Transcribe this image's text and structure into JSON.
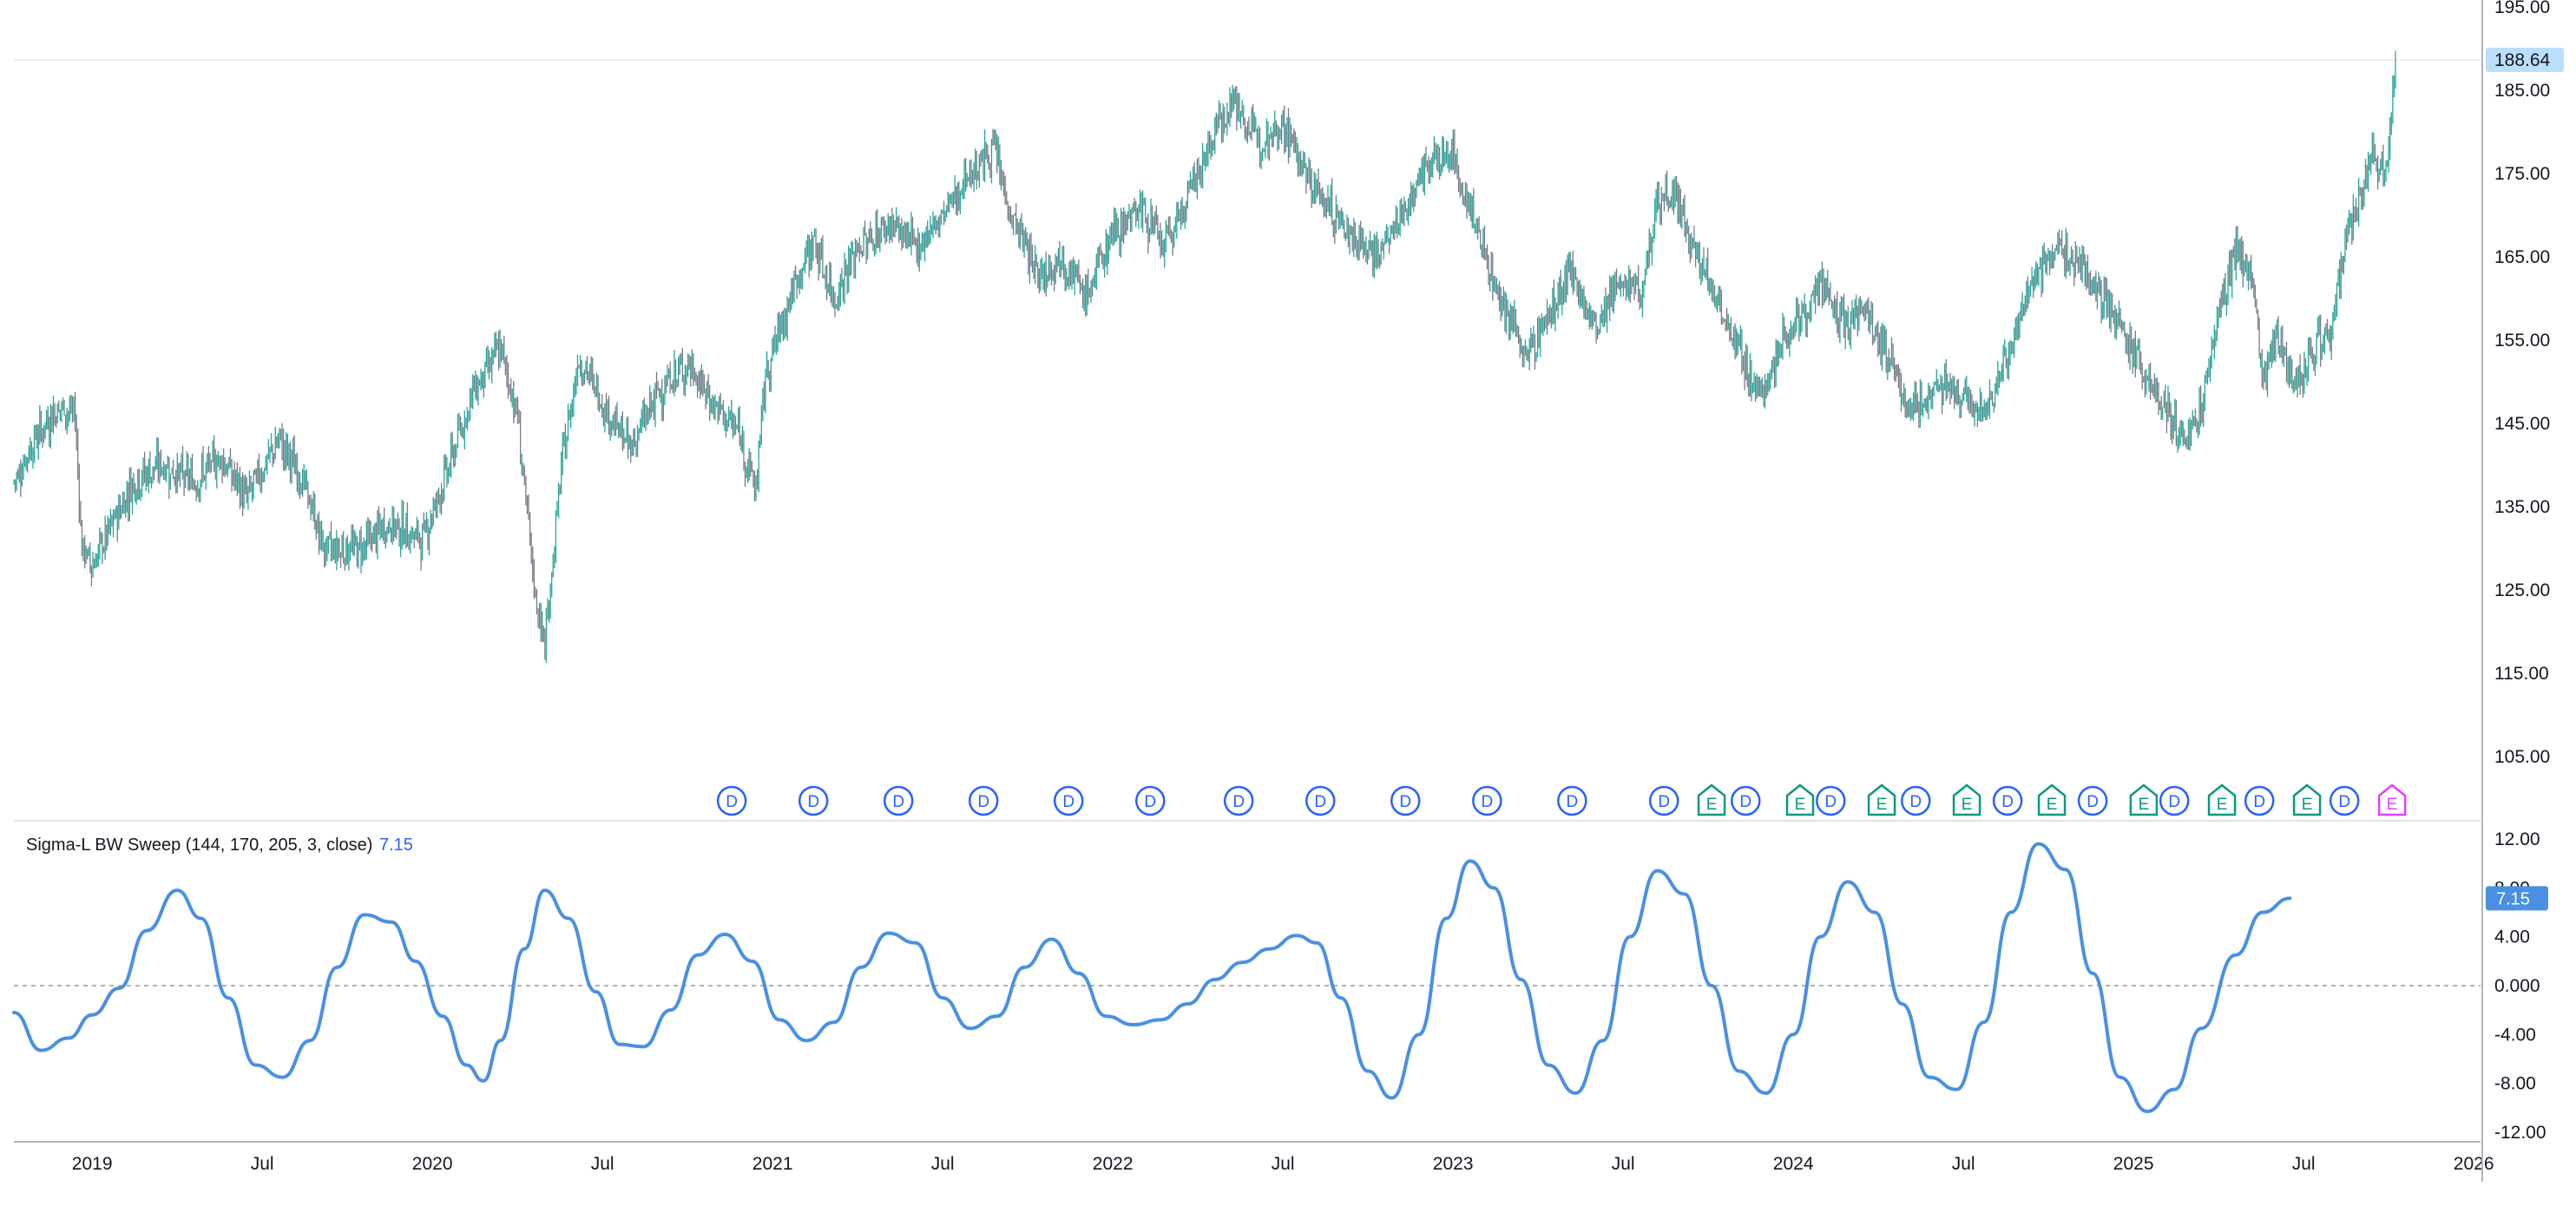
{
  "chart_data": [
    {
      "type": "candlestick",
      "series": "price",
      "ylim": [
        100,
        195
      ],
      "yticks": [
        "105.00",
        "115.00",
        "125.00",
        "135.00",
        "145.00",
        "155.00",
        "165.00",
        "175.00",
        "185.00",
        "195.00"
      ],
      "last_value_label": "188.64",
      "last_value": 188.64,
      "x_time_range": [
        2018.77,
        2025.77
      ],
      "close_path": [
        [
          2018.77,
          138
        ],
        [
          2018.83,
          143
        ],
        [
          2018.9,
          147
        ],
        [
          2018.95,
          146
        ],
        [
          2018.97,
          130
        ],
        [
          2019.0,
          128
        ],
        [
          2019.05,
          132
        ],
        [
          2019.12,
          138
        ],
        [
          2019.2,
          140
        ],
        [
          2019.3,
          138
        ],
        [
          2019.38,
          141
        ],
        [
          2019.45,
          136
        ],
        [
          2019.55,
          143
        ],
        [
          2019.62,
          138
        ],
        [
          2019.68,
          130
        ],
        [
          2019.78,
          130
        ],
        [
          2019.88,
          133
        ],
        [
          2019.97,
          131
        ],
        [
          2020.05,
          140
        ],
        [
          2020.12,
          149
        ],
        [
          2020.2,
          154
        ],
        [
          2020.25,
          146
        ],
        [
          2020.3,
          125
        ],
        [
          2020.33,
          118
        ],
        [
          2020.38,
          140
        ],
        [
          2020.43,
          153
        ],
        [
          2020.52,
          146
        ],
        [
          2020.58,
          142
        ],
        [
          2020.67,
          149
        ],
        [
          2020.75,
          152
        ],
        [
          2020.83,
          147
        ],
        [
          2020.9,
          144
        ],
        [
          2020.95,
          137
        ],
        [
          2020.98,
          151
        ],
        [
          2021.05,
          160
        ],
        [
          2021.12,
          167
        ],
        [
          2021.18,
          160
        ],
        [
          2021.25,
          166
        ],
        [
          2021.35,
          169
        ],
        [
          2021.42,
          166
        ],
        [
          2021.5,
          170
        ],
        [
          2021.58,
          175
        ],
        [
          2021.65,
          178
        ],
        [
          2021.7,
          170
        ],
        [
          2021.78,
          163
        ],
        [
          2021.85,
          165
        ],
        [
          2021.92,
          160
        ],
        [
          2022.0,
          168
        ],
        [
          2022.08,
          171
        ],
        [
          2022.15,
          166
        ],
        [
          2022.22,
          172
        ],
        [
          2022.3,
          180
        ],
        [
          2022.35,
          184
        ],
        [
          2022.42,
          179
        ],
        [
          2022.5,
          181
        ],
        [
          2022.58,
          174
        ],
        [
          2022.65,
          170
        ],
        [
          2022.72,
          167
        ],
        [
          2022.78,
          165
        ],
        [
          2022.85,
          170
        ],
        [
          2022.92,
          176
        ],
        [
          2023.0,
          177
        ],
        [
          2023.08,
          167
        ],
        [
          2023.15,
          159
        ],
        [
          2023.22,
          153
        ],
        [
          2023.28,
          158
        ],
        [
          2023.35,
          163
        ],
        [
          2023.42,
          156
        ],
        [
          2023.5,
          163
        ],
        [
          2023.55,
          160
        ],
        [
          2023.6,
          172
        ],
        [
          2023.65,
          173
        ],
        [
          2023.7,
          166
        ],
        [
          2023.78,
          160
        ],
        [
          2023.85,
          153
        ],
        [
          2023.9,
          148
        ],
        [
          2023.97,
          155
        ],
        [
          2024.02,
          158
        ],
        [
          2024.08,
          161
        ],
        [
          2024.15,
          157
        ],
        [
          2024.2,
          159
        ],
        [
          2024.28,
          153
        ],
        [
          2024.35,
          146
        ],
        [
          2024.42,
          150
        ],
        [
          2024.48,
          148
        ],
        [
          2024.55,
          146
        ],
        [
          2024.62,
          152
        ],
        [
          2024.7,
          162
        ],
        [
          2024.78,
          166
        ],
        [
          2024.85,
          164
        ],
        [
          2024.92,
          160
        ],
        [
          2024.98,
          155
        ],
        [
          2025.05,
          150
        ],
        [
          2025.1,
          146
        ],
        [
          2025.15,
          143
        ],
        [
          2025.2,
          146
        ],
        [
          2025.25,
          158
        ],
        [
          2025.3,
          166
        ],
        [
          2025.35,
          162
        ],
        [
          2025.38,
          150
        ],
        [
          2025.42,
          156
        ],
        [
          2025.48,
          150
        ],
        [
          2025.53,
          154
        ],
        [
          2025.58,
          156
        ],
        [
          2025.62,
          166
        ],
        [
          2025.67,
          172
        ],
        [
          2025.7,
          178
        ],
        [
          2025.72,
          176
        ],
        [
          2025.74,
          175
        ],
        [
          2025.77,
          188.64
        ]
      ]
    },
    {
      "type": "line",
      "series": "oscillator",
      "title": "Sigma-L BW Sweep (144, 170, 205, 3, close)",
      "value_label": "7.15",
      "value": 7.15,
      "ylim": [
        -12.5,
        12.5
      ],
      "yticks": [
        "-12.00",
        "-8.00",
        "-4.00",
        "0.000",
        "4.00",
        "8.00",
        "12.00"
      ],
      "zero_line": true,
      "color": "#4a90e2",
      "points": [
        [
          2018.77,
          -2.2
        ],
        [
          2018.85,
          -5.3
        ],
        [
          2018.93,
          -4.3
        ],
        [
          2019.0,
          -2.4
        ],
        [
          2019.08,
          -0.2
        ],
        [
          2019.16,
          4.5
        ],
        [
          2019.25,
          7.8
        ],
        [
          2019.32,
          5.5
        ],
        [
          2019.4,
          -1.0
        ],
        [
          2019.48,
          -6.5
        ],
        [
          2019.56,
          -7.5
        ],
        [
          2019.64,
          -4.5
        ],
        [
          2019.72,
          1.5
        ],
        [
          2019.8,
          5.8
        ],
        [
          2019.88,
          5.2
        ],
        [
          2019.95,
          2.0
        ],
        [
          2020.03,
          -2.5
        ],
        [
          2020.1,
          -6.5
        ],
        [
          2020.15,
          -7.8
        ],
        [
          2020.2,
          -4.5
        ],
        [
          2020.27,
          3.0
        ],
        [
          2020.33,
          7.8
        ],
        [
          2020.4,
          5.5
        ],
        [
          2020.48,
          -0.5
        ],
        [
          2020.55,
          -4.8
        ],
        [
          2020.62,
          -5.0
        ],
        [
          2020.7,
          -2.0
        ],
        [
          2020.78,
          2.5
        ],
        [
          2020.86,
          4.2
        ],
        [
          2020.94,
          2.0
        ],
        [
          2021.02,
          -2.8
        ],
        [
          2021.1,
          -4.5
        ],
        [
          2021.18,
          -3.0
        ],
        [
          2021.26,
          1.5
        ],
        [
          2021.34,
          4.3
        ],
        [
          2021.42,
          3.5
        ],
        [
          2021.5,
          -1.0
        ],
        [
          2021.58,
          -3.5
        ],
        [
          2021.66,
          -2.5
        ],
        [
          2021.74,
          1.5
        ],
        [
          2021.82,
          3.8
        ],
        [
          2021.9,
          1.0
        ],
        [
          2021.98,
          -2.5
        ],
        [
          2022.06,
          -3.2
        ],
        [
          2022.14,
          -2.8
        ],
        [
          2022.22,
          -1.5
        ],
        [
          2022.3,
          0.5
        ],
        [
          2022.38,
          1.9
        ],
        [
          2022.46,
          3.0
        ],
        [
          2022.54,
          4.1
        ],
        [
          2022.6,
          3.5
        ],
        [
          2022.67,
          -1.0
        ],
        [
          2022.75,
          -7.0
        ],
        [
          2022.82,
          -9.2
        ],
        [
          2022.9,
          -4.0
        ],
        [
          2022.98,
          5.5
        ],
        [
          2023.05,
          10.2
        ],
        [
          2023.12,
          8.0
        ],
        [
          2023.2,
          0.5
        ],
        [
          2023.28,
          -6.5
        ],
        [
          2023.36,
          -8.8
        ],
        [
          2023.44,
          -4.5
        ],
        [
          2023.52,
          4.0
        ],
        [
          2023.6,
          9.4
        ],
        [
          2023.68,
          7.5
        ],
        [
          2023.76,
          0.0
        ],
        [
          2023.84,
          -7.0
        ],
        [
          2023.92,
          -8.8
        ],
        [
          2024.0,
          -4.0
        ],
        [
          2024.08,
          4.0
        ],
        [
          2024.16,
          8.5
        ],
        [
          2024.24,
          6.0
        ],
        [
          2024.32,
          -1.5
        ],
        [
          2024.4,
          -7.5
        ],
        [
          2024.48,
          -8.5
        ],
        [
          2024.56,
          -3.0
        ],
        [
          2024.64,
          6.0
        ],
        [
          2024.72,
          11.6
        ],
        [
          2024.8,
          9.5
        ],
        [
          2024.88,
          1.0
        ],
        [
          2024.96,
          -7.5
        ],
        [
          2025.04,
          -10.3
        ],
        [
          2025.12,
          -8.5
        ],
        [
          2025.2,
          -3.5
        ],
        [
          2025.3,
          2.5
        ],
        [
          2025.38,
          6.0
        ],
        [
          2025.46,
          7.15
        ]
      ]
    },
    {
      "type": "markers",
      "events": [
        {
          "label": "D",
          "x": 2020.88
        },
        {
          "label": "D",
          "x": 2021.12
        },
        {
          "label": "D",
          "x": 2021.37
        },
        {
          "label": "D",
          "x": 2021.62
        },
        {
          "label": "D",
          "x": 2021.87
        },
        {
          "label": "D",
          "x": 2022.11
        },
        {
          "label": "D",
          "x": 2022.37
        },
        {
          "label": "D",
          "x": 2022.61
        },
        {
          "label": "D",
          "x": 2022.86
        },
        {
          "label": "D",
          "x": 2023.1
        },
        {
          "label": "D",
          "x": 2023.35
        },
        {
          "label": "D",
          "x": 2023.62
        },
        {
          "label": "E",
          "x": 2023.76
        },
        {
          "label": "D",
          "x": 2023.86
        },
        {
          "label": "E",
          "x": 2024.02
        },
        {
          "label": "D",
          "x": 2024.11
        },
        {
          "label": "E",
          "x": 2024.26
        },
        {
          "label": "D",
          "x": 2024.36
        },
        {
          "label": "E",
          "x": 2024.51
        },
        {
          "label": "D",
          "x": 2024.63
        },
        {
          "label": "E",
          "x": 2024.76
        },
        {
          "label": "D",
          "x": 2024.88
        },
        {
          "label": "E",
          "x": 2025.03
        },
        {
          "label": "D",
          "x": 2025.12
        },
        {
          "label": "E",
          "x": 2025.26
        },
        {
          "label": "D",
          "x": 2025.37
        },
        {
          "label": "E",
          "x": 2025.51
        },
        {
          "label": "D",
          "x": 2025.62
        },
        {
          "label": "E",
          "x": 2025.76
        }
      ]
    }
  ],
  "x_axis": {
    "range": [
      2018.77,
      2026.02
    ],
    "ticks": [
      {
        "label": "2019",
        "x": 2019.0
      },
      {
        "label": "Jul",
        "x": 2019.5
      },
      {
        "label": "2020",
        "x": 2020.0
      },
      {
        "label": "Jul",
        "x": 2020.5
      },
      {
        "label": "2021",
        "x": 2021.0
      },
      {
        "label": "Jul",
        "x": 2021.5
      },
      {
        "label": "2022",
        "x": 2022.0
      },
      {
        "label": "Jul",
        "x": 2022.5
      },
      {
        "label": "2023",
        "x": 2023.0
      },
      {
        "label": "Jul",
        "x": 2023.5
      },
      {
        "label": "2024",
        "x": 2024.0
      },
      {
        "label": "Jul",
        "x": 2024.5
      },
      {
        "label": "2025",
        "x": 2025.0
      },
      {
        "label": "Jul",
        "x": 2025.5
      },
      {
        "label": "2026",
        "x": 2026.0
      }
    ]
  },
  "colors": {
    "up": "#26a69a",
    "down": "#787b86",
    "candle": "#5d606b",
    "oscillator": "#4a90e2",
    "dividend": "#2962ff",
    "earnings": "#089981",
    "earnings_future": "#e040fb",
    "last_badge_bg": "#bbdefb",
    "osc_badge_bg": "#4a90e2",
    "axis_text": "#131722"
  }
}
